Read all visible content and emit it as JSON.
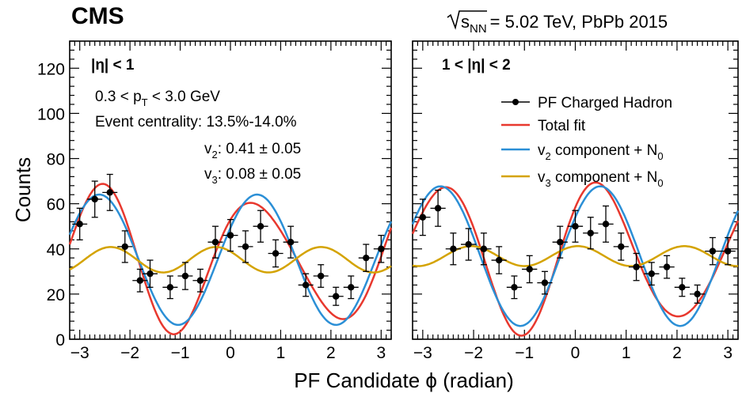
{
  "header": {
    "experiment": "CMS",
    "energy_label": "√sNN = 5.02 TeV, PbPb 2015"
  },
  "colors": {
    "data": "#000000",
    "total_fit": "#e8382e",
    "v2_component": "#2b8fd6",
    "v3_component": "#d4a300"
  },
  "chart_data": [
    {
      "type": "scatter",
      "panel_label": "|η| < 1",
      "xlabel": "PF Candidate ϕ (radian)",
      "ylabel": "Counts",
      "xlim": [
        -3.2,
        3.2
      ],
      "ylim": [
        0,
        132
      ],
      "xticks": [
        -3,
        -2,
        -1,
        0,
        1,
        2,
        3
      ],
      "yticks": [
        0,
        20,
        40,
        60,
        80,
        100,
        120
      ],
      "grid": false,
      "annotations": [
        "0.3 < pT < 3.0 GeV",
        "Event centrality: 13.5%-14.0%",
        "v2: 0.41 ± 0.05",
        "v3: 0.08 ± 0.05"
      ],
      "series": [
        {
          "name": "PF Charged Hadron",
          "kind": "points",
          "x": [
            -3.0,
            -2.7,
            -2.4,
            -2.1,
            -1.8,
            -1.6,
            -1.2,
            -0.9,
            -0.6,
            -0.3,
            0.0,
            0.3,
            0.6,
            0.9,
            1.2,
            1.5,
            1.8,
            2.1,
            2.4,
            2.7,
            3.0
          ],
          "y": [
            51,
            62,
            65,
            41,
            26,
            29,
            23,
            28,
            26,
            43,
            46,
            41,
            50,
            38,
            43,
            24,
            28,
            19,
            23,
            36,
            40
          ],
          "yerr": [
            7,
            8,
            8,
            7,
            5,
            6,
            5,
            6,
            5,
            7,
            7,
            7,
            7,
            6,
            7,
            5,
            5,
            4,
            5,
            6,
            6
          ]
        },
        {
          "name": "Total fit",
          "kind": "curve",
          "n0": 35.2,
          "v2": 0.41,
          "psi2": 0.53,
          "v3": 0.08,
          "psi3": -0.29
        },
        {
          "name": "v2 component + N0",
          "kind": "curve",
          "n0": 35.2,
          "v2": 0.41,
          "psi2": 0.53,
          "v3": 0,
          "psi3": 0
        },
        {
          "name": "v3 component + N0",
          "kind": "curve",
          "n0": 35.2,
          "v2": 0,
          "psi2": 0,
          "v3": 0.08,
          "psi3": -0.29
        }
      ]
    },
    {
      "type": "scatter",
      "panel_label": "1 < |η| < 2",
      "xlabel": "PF Candidate ϕ (radian)",
      "ylabel": "",
      "xlim": [
        -3.2,
        3.2
      ],
      "ylim": [
        0,
        132
      ],
      "xticks": [
        -3,
        -2,
        -1,
        0,
        1,
        2,
        3
      ],
      "yticks": [
        0,
        20,
        40,
        60,
        80,
        100,
        120
      ],
      "grid": false,
      "legend_position": "top-right",
      "series": [
        {
          "name": "PF Charged Hadron",
          "kind": "points",
          "x": [
            -3.0,
            -2.7,
            -2.4,
            -2.1,
            -1.8,
            -1.5,
            -1.2,
            -0.9,
            -0.6,
            -0.3,
            0.0,
            0.3,
            0.6,
            0.9,
            1.2,
            1.5,
            1.8,
            2.1,
            2.4,
            2.7,
            3.0
          ],
          "y": [
            54,
            58,
            40,
            42,
            40,
            35,
            23,
            31,
            25,
            43,
            50,
            47,
            51,
            41,
            32,
            29,
            32,
            23,
            20,
            39,
            39
          ],
          "yerr": [
            8,
            8,
            7,
            7,
            7,
            6,
            5,
            6,
            5,
            7,
            7,
            7,
            8,
            6,
            6,
            5,
            5,
            4,
            4,
            6,
            6
          ]
        },
        {
          "name": "Total fit",
          "kind": "curve",
          "n0": 36.8,
          "v2": 0.42,
          "psi2": 0.49,
          "v3": 0.06,
          "psi3": 0.05
        },
        {
          "name": "v2 component + N0",
          "kind": "curve",
          "n0": 36.8,
          "v2": 0.42,
          "psi2": 0.49,
          "v3": 0,
          "psi3": 0
        },
        {
          "name": "v3 component + N0",
          "kind": "curve",
          "n0": 36.8,
          "v2": 0,
          "psi2": 0,
          "v3": 0.06,
          "psi3": 0.05
        }
      ]
    }
  ]
}
